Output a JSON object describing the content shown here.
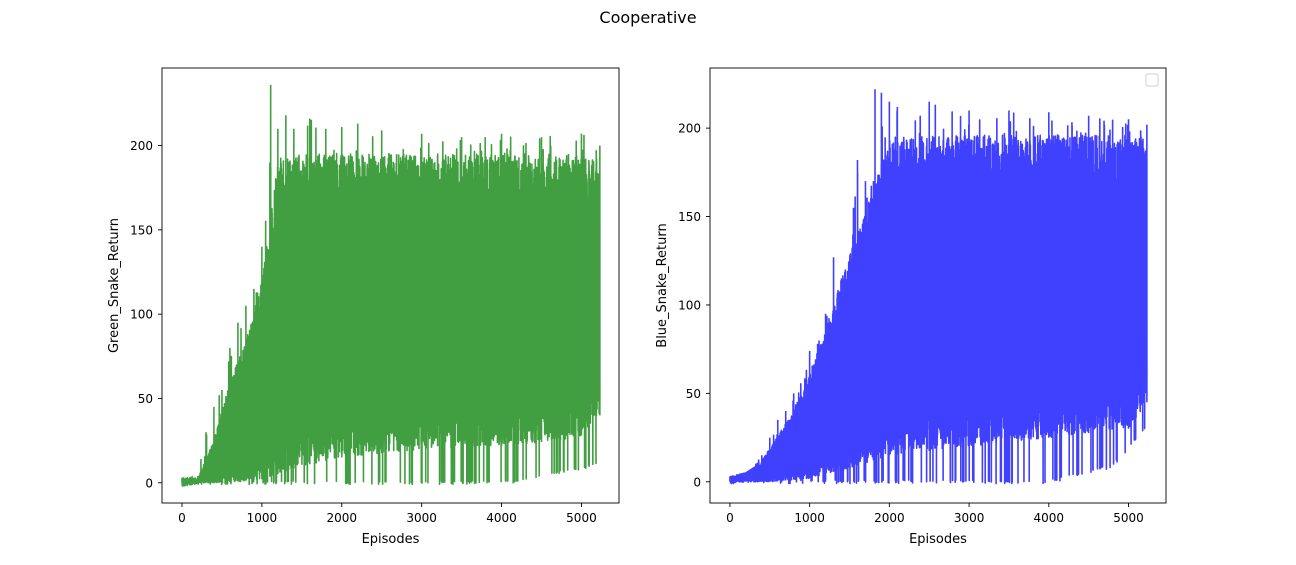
{
  "figure": {
    "title": "Cooperative"
  },
  "chart_data": [
    {
      "type": "line",
      "id": "green",
      "xlabel": "Episodes",
      "ylabel": "Green_Snake_Return",
      "xlim": [
        -250,
        5470
      ],
      "ylim": [
        -12,
        246
      ],
      "xticks": [
        0,
        1000,
        2000,
        3000,
        4000,
        5000
      ],
      "yticks": [
        0,
        50,
        100,
        150,
        200
      ],
      "color": "#419f41",
      "legend": false,
      "series": [
        {
          "x_range": [
            0,
            5230
          ],
          "min_envelope": {
            "x": [
              0,
              200,
              900,
              1500,
              2200,
              3000,
              3500,
              4200,
              4700,
              5000,
              5230
            ],
            "y": [
              -1,
              -1,
              -1,
              -1,
              -1,
              -1,
              -1,
              0,
              5,
              8,
              10
            ]
          },
          "max_envelope": {
            "x": [
              0,
              200,
              300,
              400,
              500,
              600,
              700,
              800,
              900,
              1000,
              1100,
              1110,
              1200,
              1300,
              1400,
              1600,
              1800,
              2000,
              2200,
              2500,
              3000,
              3500,
              4000,
              4500,
              5000,
              5230
            ],
            "y": [
              3,
              4,
              30,
              45,
              55,
              80,
              95,
              105,
              115,
              140,
              190,
              236,
              210,
              218,
              210,
              216,
              210,
              211,
              213,
              209,
              207,
              205,
              207,
              205,
              207,
              200
            ]
          },
          "upper_band": {
            "x": [
              0,
              200,
              400,
              600,
              800,
              1000,
              1200,
              1500,
              2000,
              3000,
              4000,
              5000,
              5230
            ],
            "y": [
              2,
              3,
              25,
              60,
              85,
              120,
              190,
              195,
              195,
              195,
              195,
              195,
              193
            ]
          },
          "lower_band": {
            "x": [
              0,
              500,
              1000,
              1500,
              2000,
              3000,
              4000,
              4700,
              5000,
              5230
            ],
            "y": [
              0,
              0,
              2,
              10,
              15,
              20,
              22,
              25,
              28,
              40
            ]
          }
        }
      ]
    },
    {
      "type": "line",
      "id": "blue",
      "xlabel": "Episodes",
      "ylabel": "Blue_Snake_Return",
      "xlim": [
        -250,
        5470
      ],
      "ylim": [
        -12,
        234
      ],
      "xticks": [
        0,
        1000,
        2000,
        3000,
        4000,
        5000
      ],
      "yticks": [
        0,
        50,
        100,
        150,
        200
      ],
      "color": "#4040ff",
      "legend": true,
      "legend_position": "top-right",
      "series": [
        {
          "x_range": [
            0,
            5230
          ],
          "min_envelope": {
            "x": [
              0,
              1000,
              2000,
              3000,
              4000,
              4800,
              5230
            ],
            "y": [
              -1,
              -1,
              -1,
              -1,
              -1,
              8,
              30
            ]
          },
          "max_envelope": {
            "x": [
              0,
              200,
              300,
              400,
              500,
              600,
              700,
              800,
              1000,
              1100,
              1200,
              1300,
              1400,
              1500,
              1550,
              1600,
              1700,
              1800,
              1820,
              1900,
              2000,
              2100,
              2500,
              3000,
              3500,
              4000,
              4500,
              5000,
              5230
            ],
            "y": [
              3,
              5,
              8,
              15,
              25,
              35,
              40,
              50,
              74,
              78,
              95,
              127,
              115,
              125,
              155,
              182,
              170,
              170,
              222,
              220,
              215,
              212,
              215,
              210,
              210,
              209,
              207,
              205,
              202
            ]
          },
          "upper_band": {
            "x": [
              0,
              400,
              800,
              1200,
              1500,
              1800,
              2000,
              3000,
              4000,
              5000,
              5230
            ],
            "y": [
              2,
              12,
              40,
              85,
              130,
              165,
              195,
              196,
              196,
              196,
              195
            ]
          },
          "lower_band": {
            "x": [
              0,
              500,
              1000,
              1500,
              2000,
              3000,
              4000,
              5000,
              5230
            ],
            "y": [
              0,
              0,
              2,
              8,
              15,
              20,
              25,
              30,
              45
            ]
          }
        }
      ]
    }
  ]
}
